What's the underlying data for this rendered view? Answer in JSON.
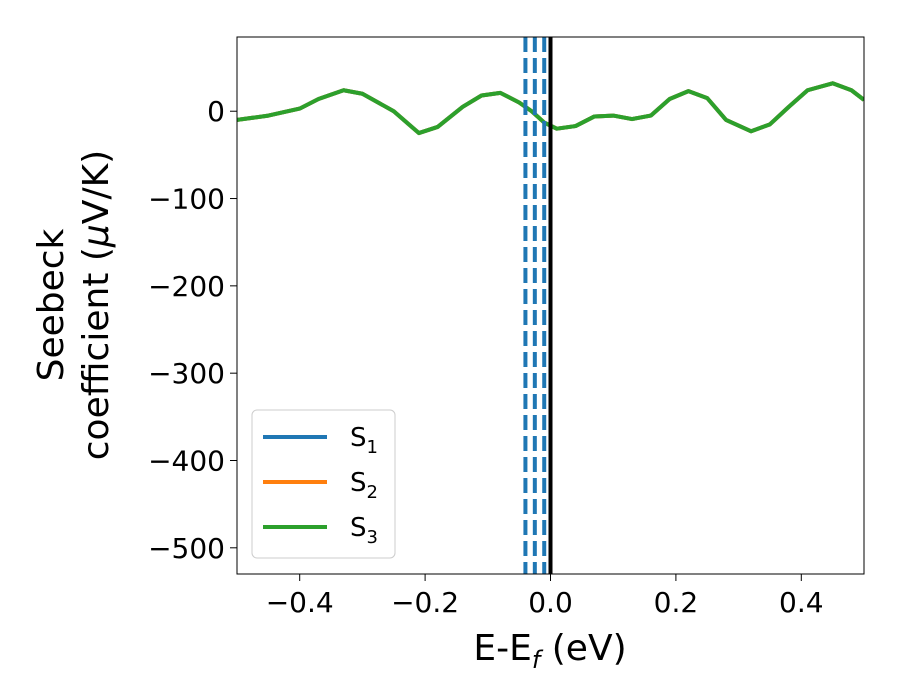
{
  "chart_data": {
    "type": "line",
    "xlabel_main": "E-E",
    "xlabel_sub": "f",
    "xlabel_unit": " (eV)",
    "ylabel_line1": "Seebeck",
    "ylabel_line2_pre": "coefficient  (",
    "ylabel_line2_mu": "μ",
    "ylabel_line2_post": "V/K)",
    "xlim": [
      -0.5,
      0.5
    ],
    "ylim": [
      -530,
      85
    ],
    "x_ticks": [
      -0.4,
      -0.2,
      0.0,
      0.2,
      0.4
    ],
    "x_tick_labels": [
      "−0.4",
      "−0.2",
      "0.0",
      "0.2",
      "0.4"
    ],
    "y_ticks": [
      0,
      -100,
      -200,
      -300,
      -400,
      -500
    ],
    "y_tick_labels": [
      "0",
      "−100",
      "−200",
      "−300",
      "−400",
      "−500"
    ],
    "legend_position": "lower-left",
    "series": [
      {
        "name_main": "S",
        "name_sub": "1",
        "color": "#1f77b4",
        "points": [
          [
            -0.5,
            -10
          ],
          [
            -0.45,
            -5
          ],
          [
            -0.4,
            3
          ],
          [
            -0.37,
            14
          ],
          [
            -0.33,
            24
          ],
          [
            -0.3,
            20
          ],
          [
            -0.25,
            0
          ],
          [
            -0.21,
            -25
          ],
          [
            -0.18,
            -18
          ],
          [
            -0.14,
            5
          ],
          [
            -0.11,
            18
          ],
          [
            -0.08,
            21
          ],
          [
            -0.05,
            10
          ],
          [
            -0.03,
            0
          ],
          [
            -0.01,
            -13
          ],
          [
            0.01,
            -20
          ],
          [
            0.04,
            -17
          ],
          [
            0.07,
            -6
          ],
          [
            0.1,
            -5
          ],
          [
            0.13,
            -9
          ],
          [
            0.16,
            -5
          ],
          [
            0.19,
            14
          ],
          [
            0.22,
            23
          ],
          [
            0.25,
            15
          ],
          [
            0.28,
            -10
          ],
          [
            0.32,
            -23
          ],
          [
            0.35,
            -15
          ],
          [
            0.38,
            5
          ],
          [
            0.41,
            24
          ],
          [
            0.45,
            32
          ],
          [
            0.48,
            24
          ],
          [
            0.5,
            13
          ]
        ]
      },
      {
        "name_main": "S",
        "name_sub": "2",
        "color": "#ff7f0e",
        "points": [
          [
            -0.5,
            -10
          ],
          [
            -0.45,
            -5
          ],
          [
            -0.4,
            3
          ],
          [
            -0.37,
            14
          ],
          [
            -0.33,
            24
          ],
          [
            -0.3,
            20
          ],
          [
            -0.25,
            0
          ],
          [
            -0.21,
            -25
          ],
          [
            -0.18,
            -18
          ],
          [
            -0.14,
            5
          ],
          [
            -0.11,
            18
          ],
          [
            -0.08,
            21
          ],
          [
            -0.05,
            10
          ],
          [
            -0.03,
            0
          ],
          [
            -0.01,
            -13
          ],
          [
            0.01,
            -20
          ],
          [
            0.04,
            -17
          ],
          [
            0.07,
            -6
          ],
          [
            0.1,
            -5
          ],
          [
            0.13,
            -9
          ],
          [
            0.16,
            -5
          ],
          [
            0.19,
            14
          ],
          [
            0.22,
            23
          ],
          [
            0.25,
            15
          ],
          [
            0.28,
            -10
          ],
          [
            0.32,
            -23
          ],
          [
            0.35,
            -15
          ],
          [
            0.38,
            5
          ],
          [
            0.41,
            24
          ],
          [
            0.45,
            32
          ],
          [
            0.48,
            24
          ],
          [
            0.5,
            13
          ]
        ]
      },
      {
        "name_main": "S",
        "name_sub": "3",
        "color": "#2ca02c",
        "points": [
          [
            -0.5,
            -10
          ],
          [
            -0.45,
            -5
          ],
          [
            -0.4,
            3
          ],
          [
            -0.37,
            14
          ],
          [
            -0.33,
            24
          ],
          [
            -0.3,
            20
          ],
          [
            -0.25,
            0
          ],
          [
            -0.21,
            -25
          ],
          [
            -0.18,
            -18
          ],
          [
            -0.14,
            5
          ],
          [
            -0.11,
            18
          ],
          [
            -0.08,
            21
          ],
          [
            -0.05,
            10
          ],
          [
            -0.03,
            0
          ],
          [
            -0.01,
            -13
          ],
          [
            0.01,
            -20
          ],
          [
            0.04,
            -17
          ],
          [
            0.07,
            -6
          ],
          [
            0.1,
            -5
          ],
          [
            0.13,
            -9
          ],
          [
            0.16,
            -5
          ],
          [
            0.19,
            14
          ],
          [
            0.22,
            23
          ],
          [
            0.25,
            15
          ],
          [
            0.28,
            -10
          ],
          [
            0.32,
            -23
          ],
          [
            0.35,
            -15
          ],
          [
            0.38,
            5
          ],
          [
            0.41,
            24
          ],
          [
            0.45,
            32
          ],
          [
            0.48,
            24
          ],
          [
            0.5,
            13
          ]
        ]
      }
    ],
    "vlines_dashed": {
      "color": "#1f77b4",
      "x": [
        -0.04,
        -0.025,
        -0.01
      ]
    },
    "vline_solid": {
      "color": "#000000",
      "x": 0.0
    }
  }
}
